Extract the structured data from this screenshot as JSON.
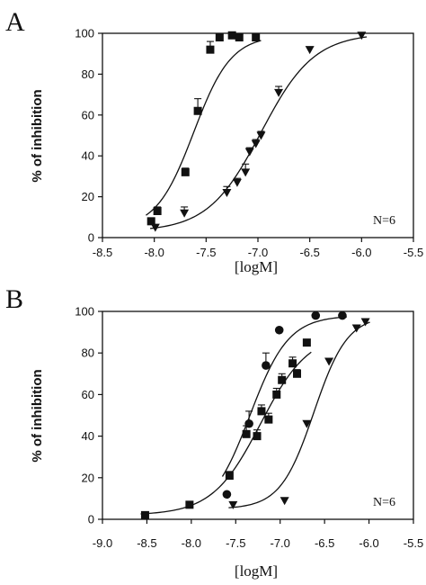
{
  "chart_data": [
    {
      "panel_label": "A",
      "type": "scatter",
      "xlabel": "[logM]",
      "ylabel": "% of inhibition",
      "xlim": [
        -8.5,
        -5.5
      ],
      "ylim": [
        0,
        100
      ],
      "xticks": [
        "-8.5",
        "-8.0",
        "-7.5",
        "-7.0",
        "-6.5",
        "-6.0",
        "-5.5"
      ],
      "yticks": [
        "0",
        "20",
        "40",
        "60",
        "80",
        "100"
      ],
      "annotation": "N=6",
      "grid": false,
      "series": [
        {
          "marker": "square",
          "points": [
            {
              "x": -8.03,
              "y": 8,
              "err": 0
            },
            {
              "x": -7.97,
              "y": 13,
              "err": 2
            },
            {
              "x": -7.7,
              "y": 32,
              "err": 2
            },
            {
              "x": -7.58,
              "y": 62,
              "err": 6
            },
            {
              "x": -7.46,
              "y": 92,
              "err": 4
            },
            {
              "x": -7.37,
              "y": 98,
              "err": 1
            },
            {
              "x": -7.25,
              "y": 99,
              "err": 1
            },
            {
              "x": -7.18,
              "y": 98,
              "err": 0
            },
            {
              "x": -7.02,
              "y": 98,
              "err": 0
            }
          ],
          "fit": {
            "ec50": -7.62,
            "hill": 2.4,
            "bottom": 4,
            "top": 99
          }
        },
        {
          "marker": "triangle-down",
          "points": [
            {
              "x": -7.99,
              "y": 5,
              "err": 0
            },
            {
              "x": -7.71,
              "y": 12,
              "err": 3
            },
            {
              "x": -7.3,
              "y": 22,
              "err": 3
            },
            {
              "x": -7.2,
              "y": 27,
              "err": 2
            },
            {
              "x": -7.12,
              "y": 32,
              "err": 4
            },
            {
              "x": -7.08,
              "y": 42,
              "err": 2
            },
            {
              "x": -7.02,
              "y": 46,
              "err": 2
            },
            {
              "x": -6.97,
              "y": 50,
              "err": 2
            },
            {
              "x": -6.8,
              "y": 71,
              "err": 3
            },
            {
              "x": -6.5,
              "y": 92,
              "err": 0
            },
            {
              "x": -6.0,
              "y": 99,
              "err": 0
            }
          ],
          "fit": {
            "ec50": -6.97,
            "hill": 1.7,
            "bottom": 3,
            "top": 100
          }
        }
      ]
    },
    {
      "panel_label": "B",
      "type": "scatter",
      "xlabel": "[logM]",
      "ylabel": "% of inhibition",
      "xlim": [
        -9.0,
        -5.5
      ],
      "ylim": [
        0,
        100
      ],
      "xticks": [
        "-9.0",
        "-8.5",
        "-8.0",
        "-7.5",
        "-7.0",
        "-6.5",
        "-6.0",
        "-5.5"
      ],
      "yticks": [
        "0",
        "20",
        "40",
        "60",
        "80",
        "100"
      ],
      "annotation": "N=6",
      "grid": false,
      "series": [
        {
          "marker": "circle",
          "points": [
            {
              "x": -7.6,
              "y": 12,
              "err": 0
            },
            {
              "x": -7.35,
              "y": 46,
              "err": 6
            },
            {
              "x": -7.16,
              "y": 74,
              "err": 6
            },
            {
              "x": -7.01,
              "y": 91,
              "err": 0
            },
            {
              "x": -6.6,
              "y": 98,
              "err": 0
            },
            {
              "x": -6.3,
              "y": 98,
              "err": 0
            }
          ],
          "fit": {
            "ec50": -7.34,
            "hill": 2.0,
            "bottom": 2,
            "top": 98
          }
        },
        {
          "marker": "square",
          "points": [
            {
              "x": -8.52,
              "y": 2,
              "err": 0
            },
            {
              "x": -8.02,
              "y": 7,
              "err": 0
            },
            {
              "x": -7.57,
              "y": 21,
              "err": 2
            },
            {
              "x": -7.38,
              "y": 41,
              "err": 4
            },
            {
              "x": -7.26,
              "y": 40,
              "err": 3
            },
            {
              "x": -7.21,
              "y": 52,
              "err": 3
            },
            {
              "x": -7.13,
              "y": 48,
              "err": 3
            },
            {
              "x": -7.04,
              "y": 60,
              "err": 3
            },
            {
              "x": -6.98,
              "y": 67,
              "err": 3
            },
            {
              "x": -6.86,
              "y": 75,
              "err": 3
            },
            {
              "x": -6.81,
              "y": 70,
              "err": 2
            },
            {
              "x": -6.7,
              "y": 85,
              "err": 1
            }
          ],
          "fit": {
            "ec50": -7.22,
            "hill": 1.6,
            "bottom": 2,
            "top": 90
          }
        },
        {
          "marker": "triangle-down",
          "points": [
            {
              "x": -7.53,
              "y": 7,
              "err": 0
            },
            {
              "x": -6.95,
              "y": 9,
              "err": 0
            },
            {
              "x": -6.7,
              "y": 46,
              "err": 0
            },
            {
              "x": -6.45,
              "y": 76,
              "err": 0
            },
            {
              "x": -6.14,
              "y": 92,
              "err": 0
            },
            {
              "x": -6.04,
              "y": 95,
              "err": 0
            }
          ],
          "fit": {
            "ec50": -6.62,
            "hill": 2.3,
            "bottom": 5,
            "top": 98
          }
        }
      ]
    }
  ]
}
